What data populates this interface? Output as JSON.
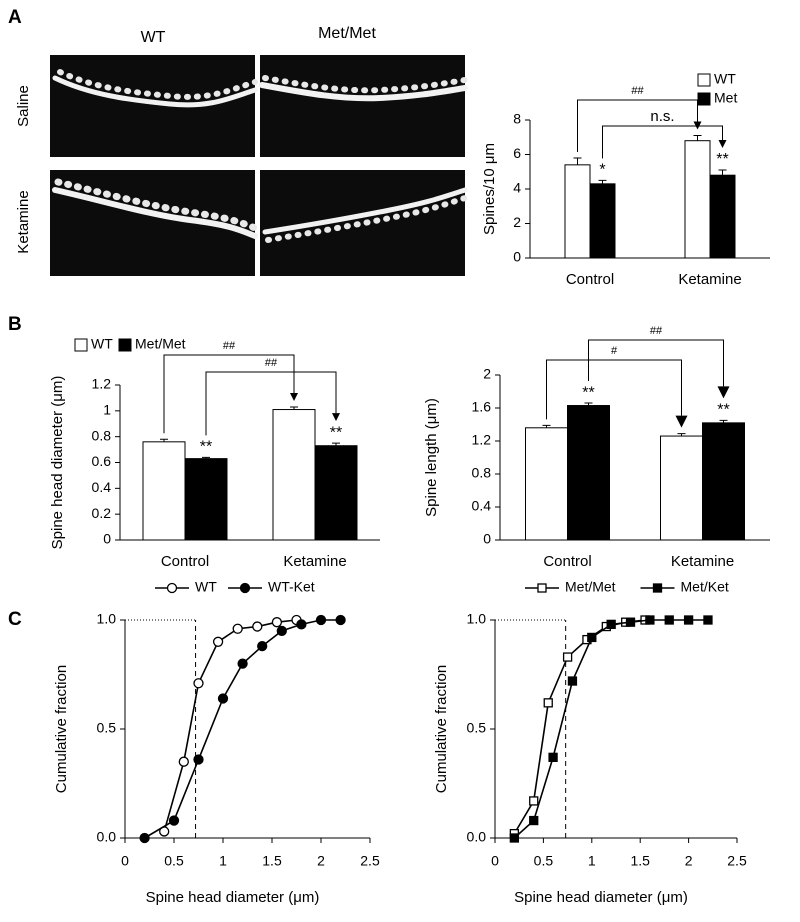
{
  "figure": {
    "panel_labels": [
      "A",
      "B",
      "C"
    ],
    "image_columns": [
      "WT",
      "Met/Met"
    ],
    "image_rows": [
      "Saline",
      "Ketamine"
    ]
  },
  "chart_data": [
    {
      "type": "bar",
      "ylabel": "Spines/10 μm",
      "categories": [
        "Control",
        "Ketamine"
      ],
      "ylim": [
        0,
        8
      ],
      "yticks": [
        0,
        2,
        4,
        6,
        8
      ],
      "legend": "upper right",
      "series": [
        {
          "name": "WT",
          "color": "#ffffff",
          "values": [
            5.4,
            6.8
          ],
          "errors": [
            0.4,
            0.3
          ],
          "comparison": "##"
        },
        {
          "name": "Met",
          "color": "#000000",
          "values": [
            4.3,
            4.8
          ],
          "errors": [
            0.2,
            0.3
          ],
          "significance": [
            "*",
            "**"
          ],
          "comparison": "n.s."
        }
      ]
    },
    {
      "type": "bar",
      "ylabel": "Spine head diameter (μm)",
      "categories": [
        "Control",
        "Ketamine"
      ],
      "ylim": [
        0,
        1.2
      ],
      "yticks": [
        0,
        0.2,
        0.4,
        0.6,
        0.8,
        1,
        1.2
      ],
      "legend": "top left",
      "series": [
        {
          "name": "WT",
          "color": "#ffffff",
          "values": [
            0.76,
            1.01
          ],
          "errors": [
            0.02,
            0.02
          ],
          "comparison": "##"
        },
        {
          "name": "Met/Met",
          "color": "#000000",
          "values": [
            0.63,
            0.73
          ],
          "errors": [
            0.01,
            0.02
          ],
          "significance": [
            "**",
            "**"
          ],
          "comparison": "##"
        }
      ]
    },
    {
      "type": "bar",
      "ylabel": "Spine length (μm)",
      "categories": [
        "Control",
        "Ketamine"
      ],
      "ylim": [
        0,
        2
      ],
      "yticks": [
        0,
        0.4,
        0.8,
        1.2,
        1.6,
        2
      ],
      "series": [
        {
          "color": "#ffffff",
          "values": [
            1.36,
            1.26
          ],
          "errors": [
            0.03,
            0.03
          ],
          "comparison": "#"
        },
        {
          "color": "#000000",
          "values": [
            1.63,
            1.42
          ],
          "errors": [
            0.03,
            0.03
          ],
          "significance": [
            "**",
            "**"
          ],
          "comparison": "##"
        }
      ]
    },
    {
      "type": "line",
      "xlabel": "Spine head diameter (μm)",
      "ylabel": "Cumulative fraction",
      "xlim": [
        0,
        2.5
      ],
      "xticks": [
        0,
        0.5,
        1,
        1.5,
        2,
        2.5
      ],
      "ylim": [
        0,
        1
      ],
      "yticks": [
        {
          "value": 0,
          "label": "0.0"
        },
        {
          "value": 0.5,
          "label": "0.5"
        },
        {
          "value": 1,
          "label": "1.0"
        }
      ],
      "reference_lines": {
        "x": 0.72,
        "y": 1
      },
      "legend": "top",
      "series": [
        {
          "name": "WT",
          "marker": "circle",
          "color": "#ffffff",
          "x": [
            0.4,
            0.6,
            0.75,
            0.95,
            1.15,
            1.35,
            1.55,
            1.75
          ],
          "values": [
            0.03,
            0.35,
            0.71,
            0.9,
            0.96,
            0.97,
            0.99,
            1.0
          ]
        },
        {
          "name": "WT-Ket",
          "marker": "circle",
          "color": "#000000",
          "x": [
            0.2,
            0.5,
            0.75,
            1.0,
            1.2,
            1.4,
            1.6,
            1.8,
            2.0,
            2.2
          ],
          "values": [
            0,
            0.08,
            0.36,
            0.64,
            0.8,
            0.88,
            0.95,
            0.98,
            1.0,
            1.0
          ]
        }
      ]
    },
    {
      "type": "line",
      "xlabel": "Spine head diameter (μm)",
      "ylabel": "Cumulative fraction",
      "xlim": [
        0,
        2.5
      ],
      "xticks": [
        0,
        0.5,
        1,
        1.5,
        2,
        2.5
      ],
      "ylim": [
        0,
        1
      ],
      "yticks": [
        {
          "value": 0,
          "label": "0.0"
        },
        {
          "value": 0.5,
          "label": "0.5"
        },
        {
          "value": 1,
          "label": "1.0"
        }
      ],
      "reference_lines": {
        "x": 0.73,
        "y": 1
      },
      "legend": "top",
      "series": [
        {
          "name": "Met/Met",
          "marker": "square",
          "color": "#ffffff",
          "x": [
            0.2,
            0.4,
            0.55,
            0.75,
            0.95,
            1.15,
            1.35,
            1.55
          ],
          "values": [
            0.02,
            0.17,
            0.62,
            0.83,
            0.91,
            0.97,
            0.99,
            1.0
          ]
        },
        {
          "name": "Met/Ket",
          "marker": "square",
          "color": "#000000",
          "x": [
            0.2,
            0.4,
            0.6,
            0.8,
            1.0,
            1.2,
            1.4,
            1.6,
            1.8,
            2.0,
            2.2
          ],
          "values": [
            0,
            0.08,
            0.37,
            0.72,
            0.92,
            0.98,
            0.99,
            1.0,
            1.0,
            1.0,
            1.0
          ]
        }
      ]
    }
  ]
}
